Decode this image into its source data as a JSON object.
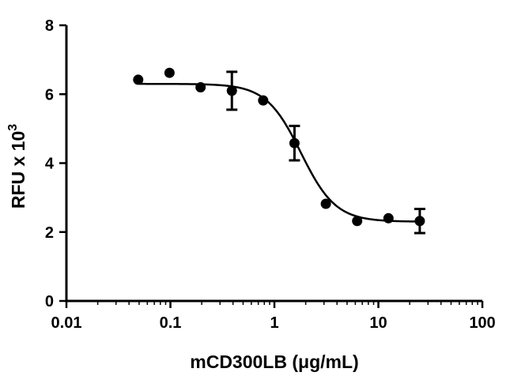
{
  "chart_data": {
    "type": "scatter",
    "x_scale": "log",
    "xlim": [
      0.01,
      100
    ],
    "ylim": [
      0,
      8
    ],
    "xlabel_prefix": "mCD300LB (",
    "xlabel_unit": "μg/mL",
    "xlabel_suffix": ")",
    "ylabel_base": "RFU x 10",
    "ylabel_exponent": "3",
    "x_ticks": [
      {
        "value": 0.01,
        "label": "0.01"
      },
      {
        "value": 0.1,
        "label": "0.1"
      },
      {
        "value": 1,
        "label": "1"
      },
      {
        "value": 10,
        "label": "10"
      },
      {
        "value": 100,
        "label": "100"
      }
    ],
    "y_ticks": [
      {
        "value": 0,
        "label": "0"
      },
      {
        "value": 2,
        "label": "2"
      },
      {
        "value": 4,
        "label": "4"
      },
      {
        "value": 6,
        "label": "6"
      },
      {
        "value": 8,
        "label": "8"
      }
    ],
    "grid": false,
    "series": [
      {
        "points": [
          {
            "x": 0.049,
            "y": 6.42,
            "err": 0
          },
          {
            "x": 0.098,
            "y": 6.62,
            "err": 0
          },
          {
            "x": 0.195,
            "y": 6.2,
            "err": 0
          },
          {
            "x": 0.39,
            "y": 6.1,
            "err": 0.55
          },
          {
            "x": 0.78,
            "y": 5.82,
            "err": 0
          },
          {
            "x": 1.56,
            "y": 4.58,
            "err": 0.5
          },
          {
            "x": 3.125,
            "y": 2.82,
            "err": 0
          },
          {
            "x": 6.25,
            "y": 2.32,
            "err": 0
          },
          {
            "x": 12.5,
            "y": 2.4,
            "err": 0
          },
          {
            "x": 25,
            "y": 2.32,
            "err": 0.35
          }
        ]
      }
    ],
    "fit": {
      "model": "sigmoidal dose-response",
      "top": 6.3,
      "bottom": 2.3,
      "ec50": 1.8,
      "hill_slope": 2.6,
      "x_range": [
        0.05,
        25
      ]
    }
  }
}
